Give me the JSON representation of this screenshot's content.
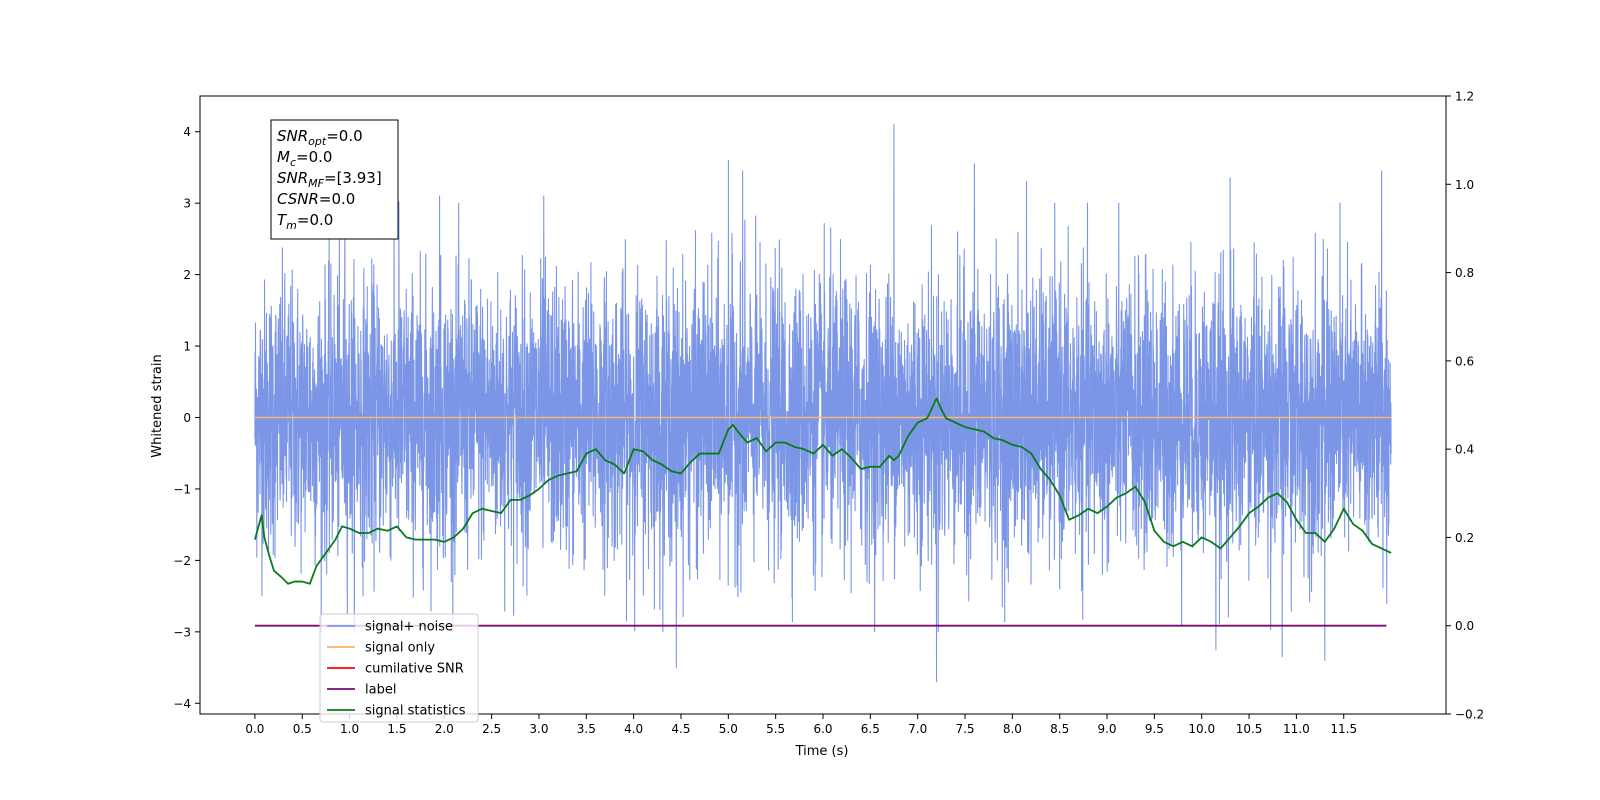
{
  "chart_data": {
    "type": "line",
    "title": "",
    "xlabel": "Time (s)",
    "ylabel": "Whitened strain",
    "xlim": [
      -0.58,
      12.58
    ],
    "ylim": [
      -4.15,
      4.5
    ],
    "y2lim": [
      -0.2,
      1.2
    ],
    "grid": false,
    "legend_position": "lower-left",
    "x_ticks": [
      "0.0",
      "0.5",
      "1.0",
      "1.5",
      "2.0",
      "2.5",
      "3.0",
      "3.5",
      "4.0",
      "4.5",
      "5.0",
      "5.5",
      "6.0",
      "6.5",
      "7.0",
      "7.5",
      "8.0",
      "8.5",
      "9.0",
      "9.5",
      "10.0",
      "10.5",
      "11.0",
      "11.5"
    ],
    "y_ticks": [
      4,
      3,
      2,
      1,
      0,
      -1,
      -2,
      -3,
      -4
    ],
    "y_tick_labels": [
      "4",
      "3",
      "2",
      "1",
      "0",
      "−1",
      "−2",
      "−3",
      "−4"
    ],
    "y2_ticks": [
      1.2,
      1.0,
      0.8,
      0.6,
      0.4,
      0.2,
      0.0,
      -0.2
    ],
    "y2_tick_labels": [
      "1.2",
      "1.0",
      "0.8",
      "0.6",
      "0.4",
      "0.2",
      "0.0",
      "−0.2"
    ],
    "series": [
      {
        "name": "signal+ noise",
        "color": "#7b96e6",
        "axis": "left",
        "sampling": "dense random noise, 0.0–12.0 s",
        "envelope_max": 4.1,
        "envelope_min": -3.7,
        "peaks": [
          {
            "x": 0.95,
            "y": 3.05
          },
          {
            "x": 1.52,
            "y": 3.02
          },
          {
            "x": 1.95,
            "y": 3.1
          },
          {
            "x": 3.05,
            "y": 3.1
          },
          {
            "x": 5.0,
            "y": 3.6
          },
          {
            "x": 5.15,
            "y": 3.45
          },
          {
            "x": 6.75,
            "y": 4.1
          },
          {
            "x": 7.6,
            "y": 3.55
          },
          {
            "x": 8.15,
            "y": 3.3
          },
          {
            "x": 10.3,
            "y": 3.35
          },
          {
            "x": 11.9,
            "y": 3.45
          }
        ],
        "troughs": [
          {
            "x": 4.45,
            "y": -3.5
          },
          {
            "x": 7.2,
            "y": -3.7
          },
          {
            "x": 10.15,
            "y": -3.25
          },
          {
            "x": 10.85,
            "y": -3.35
          },
          {
            "x": 11.3,
            "y": -3.4
          }
        ]
      },
      {
        "name": "signal only",
        "color": "#ffb366",
        "axis": "left",
        "x": [
          0.0,
          12.0
        ],
        "y": [
          0.0,
          0.0
        ]
      },
      {
        "name": "cumilative SNR",
        "color": "#ff0000",
        "axis": "left",
        "x": [],
        "y": []
      },
      {
        "name": "label",
        "color": "#7a0a7a",
        "axis": "right",
        "x": [
          0.0,
          11.95
        ],
        "y": [
          0.0,
          0.0
        ]
      },
      {
        "name": "signal statistics",
        "color": "#0a7a1a",
        "axis": "right",
        "x": [
          0.0,
          0.07,
          0.1,
          0.15,
          0.2,
          0.28,
          0.35,
          0.42,
          0.5,
          0.58,
          0.65,
          0.75,
          0.85,
          0.92,
          1.0,
          1.1,
          1.2,
          1.3,
          1.4,
          1.5,
          1.6,
          1.7,
          1.8,
          1.9,
          2.0,
          2.1,
          2.2,
          2.3,
          2.4,
          2.5,
          2.6,
          2.7,
          2.8,
          2.9,
          3.0,
          3.1,
          3.2,
          3.3,
          3.4,
          3.5,
          3.6,
          3.7,
          3.8,
          3.9,
          4.0,
          4.1,
          4.2,
          4.3,
          4.4,
          4.5,
          4.6,
          4.7,
          4.8,
          4.9,
          5.0,
          5.05,
          5.1,
          5.2,
          5.3,
          5.4,
          5.5,
          5.6,
          5.7,
          5.8,
          5.9,
          6.0,
          6.1,
          6.2,
          6.3,
          6.4,
          6.5,
          6.6,
          6.7,
          6.75,
          6.8,
          6.9,
          7.0,
          7.1,
          7.2,
          7.25,
          7.3,
          7.4,
          7.5,
          7.6,
          7.7,
          7.8,
          7.9,
          8.0,
          8.1,
          8.2,
          8.3,
          8.4,
          8.5,
          8.6,
          8.7,
          8.8,
          8.9,
          9.0,
          9.1,
          9.2,
          9.3,
          9.4,
          9.5,
          9.6,
          9.7,
          9.8,
          9.9,
          10.0,
          10.1,
          10.2,
          10.3,
          10.4,
          10.5,
          10.6,
          10.7,
          10.8,
          10.9,
          11.0,
          11.1,
          11.2,
          11.3,
          11.4,
          11.5,
          11.6,
          11.7,
          11.8,
          11.9,
          12.0
        ],
        "y": [
          0.195,
          0.25,
          0.2,
          0.16,
          0.125,
          0.11,
          0.095,
          0.1,
          0.1,
          0.095,
          0.135,
          0.165,
          0.195,
          0.225,
          0.22,
          0.21,
          0.21,
          0.22,
          0.215,
          0.225,
          0.2,
          0.195,
          0.195,
          0.195,
          0.19,
          0.2,
          0.22,
          0.255,
          0.265,
          0.26,
          0.255,
          0.285,
          0.285,
          0.295,
          0.31,
          0.33,
          0.34,
          0.345,
          0.35,
          0.39,
          0.4,
          0.375,
          0.365,
          0.345,
          0.4,
          0.395,
          0.375,
          0.365,
          0.35,
          0.345,
          0.37,
          0.39,
          0.39,
          0.39,
          0.445,
          0.455,
          0.44,
          0.415,
          0.425,
          0.395,
          0.415,
          0.415,
          0.405,
          0.4,
          0.39,
          0.41,
          0.385,
          0.4,
          0.38,
          0.355,
          0.36,
          0.36,
          0.385,
          0.375,
          0.385,
          0.43,
          0.46,
          0.47,
          0.515,
          0.49,
          0.47,
          0.46,
          0.45,
          0.445,
          0.44,
          0.425,
          0.42,
          0.41,
          0.405,
          0.39,
          0.355,
          0.33,
          0.295,
          0.24,
          0.25,
          0.265,
          0.255,
          0.27,
          0.29,
          0.3,
          0.315,
          0.28,
          0.215,
          0.19,
          0.18,
          0.19,
          0.18,
          0.2,
          0.19,
          0.175,
          0.2,
          0.225,
          0.255,
          0.27,
          0.29,
          0.3,
          0.28,
          0.24,
          0.21,
          0.21,
          0.19,
          0.22,
          0.265,
          0.23,
          0.215,
          0.185,
          0.175,
          0.165
        ]
      }
    ],
    "annotation": [
      {
        "base": "SNR",
        "sub": "opt",
        "value": "=0.0"
      },
      {
        "base": "M",
        "sub": "c",
        "value": "=0.0"
      },
      {
        "base": "SNR",
        "sub": "MF",
        "value": "=[3.93]"
      },
      {
        "base": "CSNR",
        "sub": "",
        "value": "=0.0"
      },
      {
        "base": "T",
        "sub": "m",
        "value": "=0.0"
      }
    ],
    "legend": [
      "signal+ noise",
      "signal only",
      "cumilative SNR",
      "label",
      "signal statistics"
    ]
  }
}
